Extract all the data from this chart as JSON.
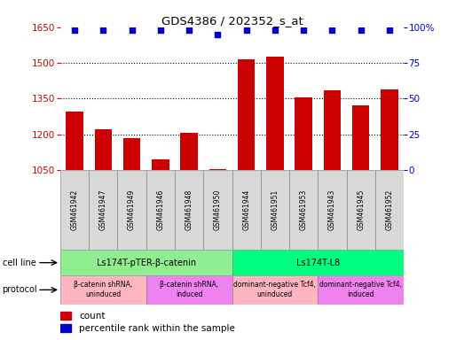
{
  "title": "GDS4386 / 202352_s_at",
  "samples": [
    "GSM461942",
    "GSM461947",
    "GSM461949",
    "GSM461946",
    "GSM461948",
    "GSM461950",
    "GSM461944",
    "GSM461951",
    "GSM461953",
    "GSM461943",
    "GSM461945",
    "GSM461952"
  ],
  "counts": [
    1295,
    1220,
    1185,
    1095,
    1205,
    1055,
    1515,
    1525,
    1355,
    1385,
    1320,
    1390
  ],
  "percentile_ranks": [
    98,
    98,
    98,
    98,
    98,
    95,
    98,
    98,
    98,
    98,
    98,
    98
  ],
  "ylim_left": [
    1050,
    1650
  ],
  "ylim_right": [
    0,
    100
  ],
  "yticks_left": [
    1050,
    1200,
    1350,
    1500,
    1650
  ],
  "yticks_right": [
    0,
    25,
    50,
    75,
    100
  ],
  "cell_line_groups": [
    {
      "label": "Ls174T-pTER-β-catenin",
      "start": 0,
      "end": 6,
      "color": "#90EE90"
    },
    {
      "label": "Ls174T-L8",
      "start": 6,
      "end": 12,
      "color": "#00FF7F"
    }
  ],
  "protocol_groups": [
    {
      "label": "β-catenin shRNA,\nuninduced",
      "start": 0,
      "end": 3,
      "color": "#FFB6C1"
    },
    {
      "label": "β-catenin shRNA,\ninduced",
      "start": 3,
      "end": 6,
      "color": "#EE82EE"
    },
    {
      "label": "dominant-negative Tcf4,\nuninduced",
      "start": 6,
      "end": 9,
      "color": "#FFB6C1"
    },
    {
      "label": "dominant-negative Tcf4,\ninduced",
      "start": 9,
      "end": 12,
      "color": "#EE82EE"
    }
  ],
  "bar_color": "#CC0000",
  "dot_color": "#0000CC",
  "left_label_color": "#CC0000",
  "right_label_color": "#0000CC"
}
